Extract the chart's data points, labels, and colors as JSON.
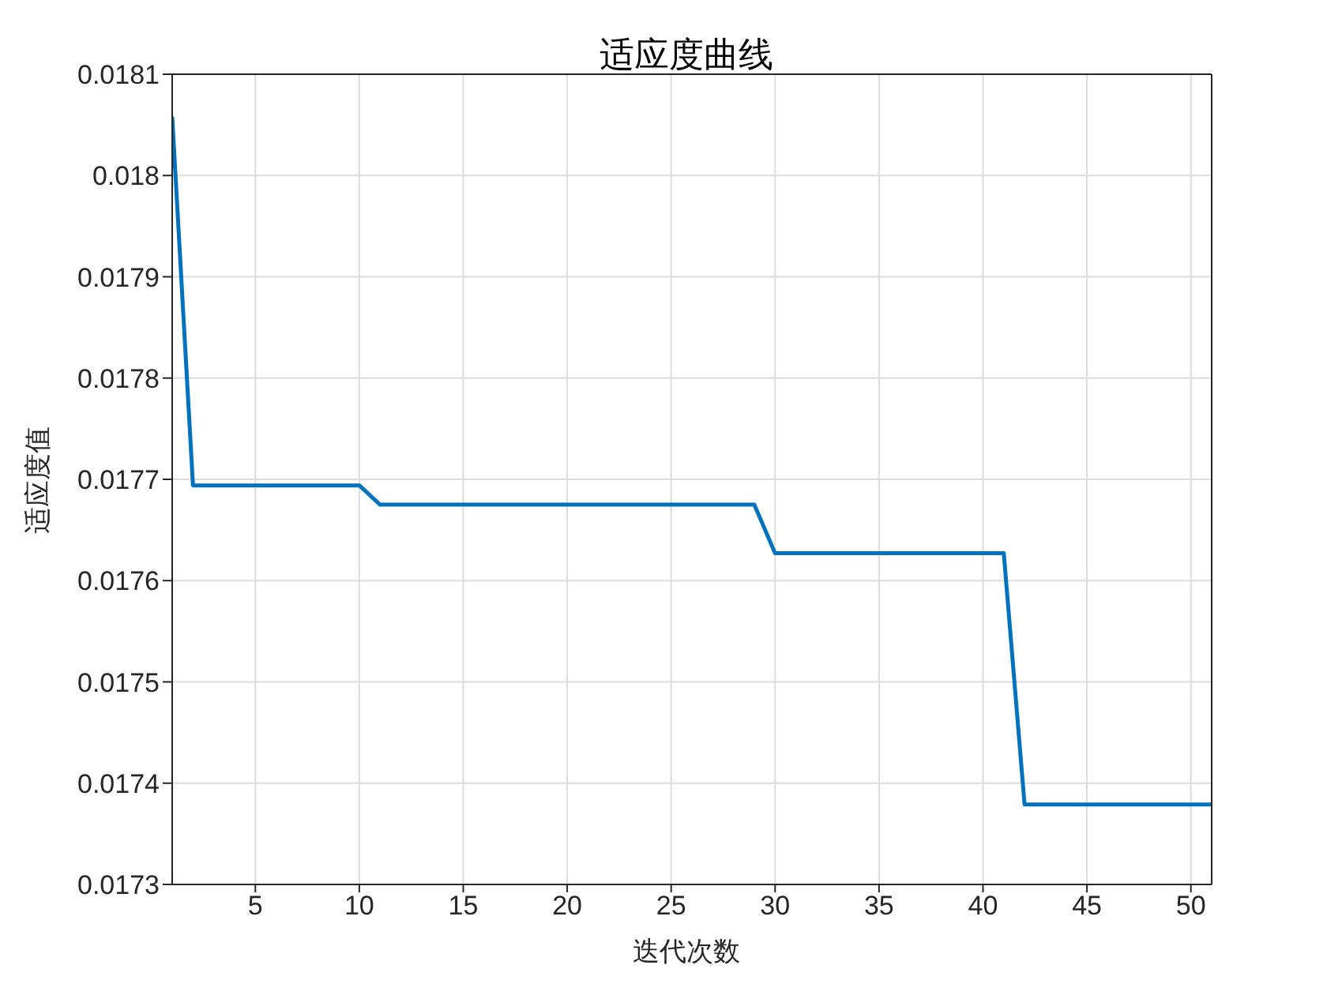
{
  "chart_data": {
    "type": "line",
    "title": "适应度曲线",
    "xlabel": "迭代次数",
    "ylabel": "适应度值",
    "x": [
      1,
      2,
      10,
      11,
      29,
      30,
      41,
      42,
      51
    ],
    "series": [
      {
        "color": "#0072bd",
        "values": [
          0.018058,
          0.017694,
          0.017694,
          0.017675,
          0.017675,
          0.017627,
          0.017627,
          0.017379,
          0.017379
        ]
      }
    ],
    "xlim": [
      1,
      51
    ],
    "xticks": [
      5,
      10,
      15,
      20,
      25,
      30,
      35,
      40,
      45,
      50
    ],
    "ylim": [
      0.0173,
      0.0181
    ],
    "yticks": [
      0.0173,
      0.0174,
      0.0175,
      0.0176,
      0.0177,
      0.0178,
      0.0179,
      0.018,
      0.0181
    ],
    "grid": true,
    "legend": false,
    "marker": "none",
    "line_style": "solid"
  }
}
